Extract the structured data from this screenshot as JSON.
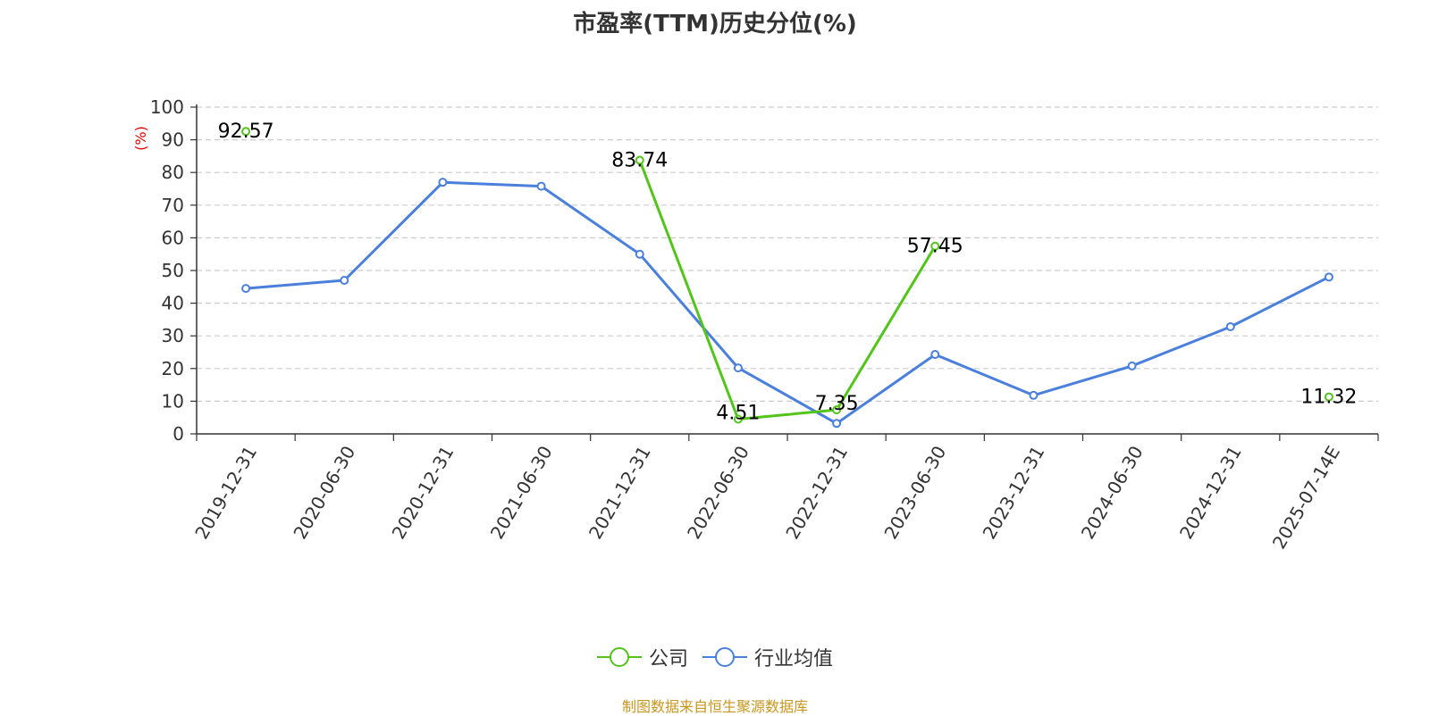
{
  "chart_data": {
    "type": "line",
    "title": "市盈率(TTM)历史分位(%)",
    "ylabel": "(%)",
    "xlabel": "",
    "ylim": [
      0,
      100
    ],
    "yticks": [
      0,
      10,
      20,
      30,
      40,
      50,
      60,
      70,
      80,
      90,
      100
    ],
    "grid": true,
    "legend_position": "bottom",
    "categories": [
      "2019-12-31",
      "2020-06-30",
      "2020-12-31",
      "2021-06-30",
      "2021-12-31",
      "2022-06-30",
      "2022-12-31",
      "2023-06-30",
      "2023-12-31",
      "2024-06-30",
      "2024-12-31",
      "2025-07-14E"
    ],
    "series": [
      {
        "name": "公司",
        "color": "#52c41a",
        "values": [
          92.57,
          null,
          null,
          null,
          83.74,
          4.51,
          7.35,
          57.45,
          null,
          null,
          null,
          11.32
        ],
        "labels": [
          "92.57",
          "",
          "",
          "",
          "83.74",
          "4.51",
          "7.35",
          "57.45",
          "",
          "",
          "",
          "11.32"
        ]
      },
      {
        "name": "行业均值",
        "color": "#4a7fdc",
        "values": [
          44.5,
          47.0,
          77.0,
          75.8,
          55.0,
          20.2,
          3.2,
          24.3,
          11.8,
          20.8,
          32.8,
          48.0
        ],
        "labels": []
      }
    ]
  },
  "source_note": "制图数据来自恒生聚源数据库"
}
